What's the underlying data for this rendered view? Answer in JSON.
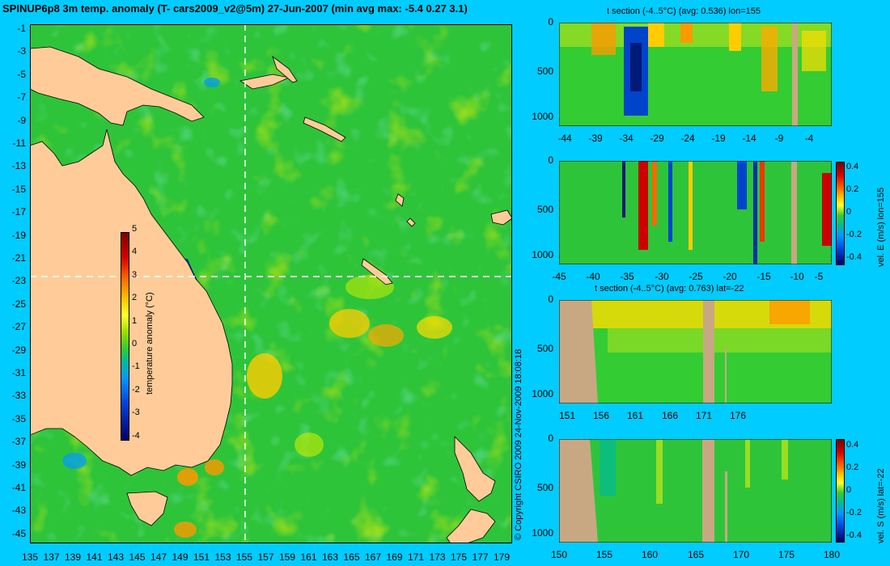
{
  "map": {
    "title": "SPINUP6p8 3m temp. anomaly (T- cars2009_v2@5m) 27-Jun-2007 (min avg max: -5.4 0.27 3.1)",
    "lat_labels": [
      "-1",
      "-3",
      "-5",
      "-7",
      "-9",
      "-11",
      "-13",
      "-15",
      "-17",
      "-19",
      "-21",
      "-23",
      "-25",
      "-27",
      "-29",
      "-31",
      "-33",
      "-35",
      "-37",
      "-39",
      "-41",
      "-43",
      "-45"
    ],
    "lon_labels": [
      "135",
      "137",
      "139",
      "141",
      "143",
      "145",
      "147",
      "149",
      "151",
      "153",
      "155",
      "157",
      "159",
      "161",
      "163",
      "165",
      "167",
      "169",
      "171",
      "173",
      "175",
      "177",
      "179"
    ],
    "colorbar": {
      "label": "temperature anomaly (°C)",
      "ticks": [
        "5",
        "4",
        "3",
        "2",
        "1",
        "0",
        "-1",
        "-2",
        "-3",
        "-4"
      ]
    },
    "crosshair": {
      "lon": 155,
      "lat": -22
    },
    "copyright": "© Copyright CSIRO 2009   24-Nov-2009 18:08:18"
  },
  "panels": {
    "p1": {
      "title": "t section (-4..5°C) (avg: 0.536) lon=155",
      "y_ticks": [
        "0",
        "500",
        "1000"
      ],
      "x_ticks": [
        "-44",
        "-39",
        "-34",
        "-29",
        "-24",
        "-19",
        "-14",
        "-9",
        "-4"
      ]
    },
    "p2": {
      "x_ticks": [
        "-45",
        "-40",
        "-35",
        "-30",
        "-25",
        "-20",
        "-15",
        "-10",
        "-5"
      ],
      "y_ticks": [
        "0",
        "500",
        "1000"
      ],
      "cb_ticks": [
        "0.4",
        "0.2",
        "0",
        "-0.2",
        "-0.4"
      ],
      "cb_label": "vel. E (m/s) lon=155"
    },
    "p3": {
      "title": "t section (-4..5°C) (avg: 0.763) lat=-22",
      "y_ticks": [
        "0",
        "500",
        "1000"
      ],
      "x_ticks": [
        "151",
        "156",
        "161",
        "166",
        "171",
        "176"
      ]
    },
    "p4": {
      "x_ticks": [
        "150",
        "155",
        "160",
        "165",
        "170",
        "175",
        "180"
      ],
      "y_ticks": [
        "0",
        "500",
        "1000"
      ],
      "cb_ticks": [
        "0.4",
        "0.2",
        "0",
        "-0.2",
        "-0.4"
      ],
      "cb_label": "vel. S (m/s) lat=-22"
    }
  },
  "colors": {
    "background": "#00ccff",
    "land": "#ffcc99",
    "section_land": "#c8a882",
    "ocean_base": "#33cc33"
  }
}
